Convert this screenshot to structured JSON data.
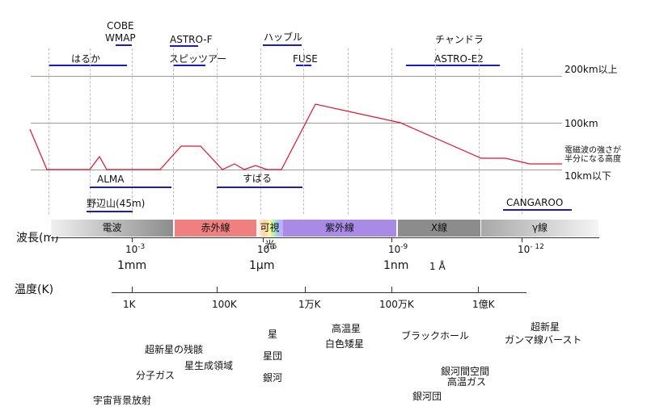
{
  "observatories_top": [
    {
      "id": "cobe",
      "text": "COBE"
    },
    {
      "id": "wmap",
      "text": "WMAP"
    },
    {
      "id": "haruka",
      "text": "はるか"
    },
    {
      "id": "astro-f",
      "text": "ASTRO-F"
    },
    {
      "id": "spitzer",
      "text": "スピッツアー"
    },
    {
      "id": "hubble",
      "text": "ハッブル"
    },
    {
      "id": "fuse",
      "text": "FUSE"
    },
    {
      "id": "chandra",
      "text": "チャンドラ"
    },
    {
      "id": "astro-e2",
      "text": "ASTRO-E2"
    }
  ],
  "observatories_ground": [
    {
      "id": "alma",
      "text": "ALMA"
    },
    {
      "id": "subaru",
      "text": "すばる"
    },
    {
      "id": "nobeyama",
      "text": "野辺山(45m)"
    },
    {
      "id": "cangaroo",
      "text": "CANGAROO"
    }
  ],
  "altitude_labels": {
    "a200": "200km以上",
    "a100": "100km",
    "half1": "電磁波の強さが",
    "half2": "半分になる高度",
    "a10": "10km以下"
  },
  "wavelength": {
    "axis_label": "波長(m)",
    "bands": [
      "電波",
      "赤外線",
      "可視光",
      "紫外線",
      "X線",
      "γ線"
    ],
    "ticks": [
      {
        "base": "10",
        "exp": "-3",
        "unit": "1mm"
      },
      {
        "base": "10",
        "exp": "-6",
        "unit": "1μm"
      },
      {
        "base": "10",
        "exp": "-9",
        "unit": "1nm"
      },
      {
        "base": "10",
        "exp": "- 12",
        "unit": ""
      }
    ],
    "angstrom": "1 Å"
  },
  "temperature": {
    "axis_label": "温度(K)",
    "ticks": [
      "1K",
      "100K",
      "1万K",
      "100万K",
      "1億K"
    ]
  },
  "objects": [
    {
      "id": "cmb",
      "text": "宇宙背景放射"
    },
    {
      "id": "molecular-gas",
      "text": "分子ガス"
    },
    {
      "id": "snr",
      "text": "超新星の残骸"
    },
    {
      "id": "star-forming",
      "text": "星生成領域"
    },
    {
      "id": "star",
      "text": "星"
    },
    {
      "id": "star-cluster",
      "text": "星団"
    },
    {
      "id": "galaxy",
      "text": "銀河"
    },
    {
      "id": "hot-star",
      "text": "高温星"
    },
    {
      "id": "white-dwarf",
      "text": "白色矮星"
    },
    {
      "id": "black-hole",
      "text": "ブラックホール"
    },
    {
      "id": "igm",
      "text": "銀河間空間"
    },
    {
      "id": "hot-gas",
      "text": "高温ガス"
    },
    {
      "id": "galaxy-cluster",
      "text": "銀河団"
    },
    {
      "id": "supernova",
      "text": "超新星"
    },
    {
      "id": "grb",
      "text": "ガンマ線バースト"
    }
  ],
  "colors": {
    "curve": "#e8102a",
    "observatory_line": "#1a1acc",
    "radio_band": "#8c8c8c",
    "infrared_band": "#f08080",
    "uv_band": "#a98be6",
    "xray_band": "#8c8c8c",
    "gamma_band": "#bdbdbd"
  }
}
